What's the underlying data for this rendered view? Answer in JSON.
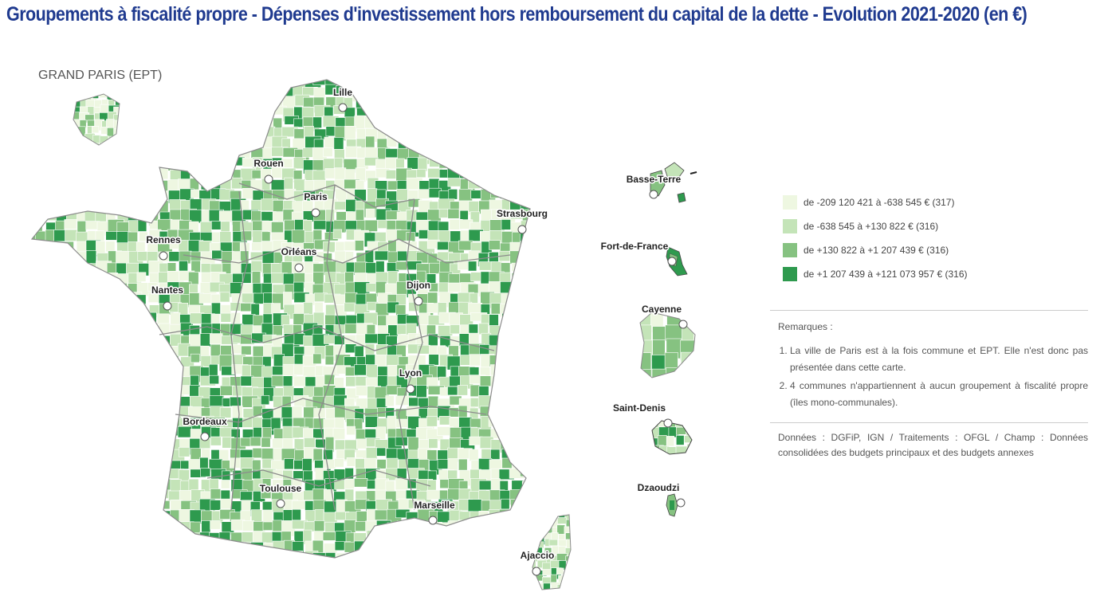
{
  "page": {
    "title": "Groupements à fiscalité propre - Dépenses d'investissement hors remboursement du capital de la dette - Evolution 2021-2020 (en €)",
    "inset_label": "GRAND PARIS (EPT)"
  },
  "colors": {
    "title": "#1f3a8f",
    "class1": "#eef7e1",
    "class2": "#c4e4b8",
    "class3": "#86c281",
    "class4": "#2e9a4e",
    "boundary": "#8c8c8c"
  },
  "legend": {
    "items": [
      {
        "label": "de -209 120 421 à -638 545 € (317)",
        "color": "#eef7e1"
      },
      {
        "label": "de -638 545 à +130 822 € (316)",
        "color": "#c4e4b8"
      },
      {
        "label": "de +130 822 à +1 207 439 € (316)",
        "color": "#86c281"
      },
      {
        "label": "de +1 207 439 à +121 073 957 € (316)",
        "color": "#2e9a4e"
      }
    ]
  },
  "cities": [
    {
      "name": "Lille"
    },
    {
      "name": "Rouen"
    },
    {
      "name": "Paris"
    },
    {
      "name": "Strasbourg"
    },
    {
      "name": "Rennes"
    },
    {
      "name": "Orléans"
    },
    {
      "name": "Nantes"
    },
    {
      "name": "Dijon"
    },
    {
      "name": "Lyon"
    },
    {
      "name": "Bordeaux"
    },
    {
      "name": "Toulouse"
    },
    {
      "name": "Marseille"
    },
    {
      "name": "Ajaccio"
    }
  ],
  "overseas": [
    {
      "name": "Basse-Terre"
    },
    {
      "name": "Fort-de-France"
    },
    {
      "name": "Cayenne"
    },
    {
      "name": "Saint-Denis"
    },
    {
      "name": "Dzaoudzi"
    }
  ],
  "remarks": {
    "heading": "Remarques :",
    "items": [
      "La ville de Paris est à la fois commune et EPT. Elle n'est donc pas présentée dans cette carte.",
      "4 communes n'appartiennent à aucun groupement à fiscalité propre (îles mono-communales)."
    ]
  },
  "source": "Données : DGFiP, IGN / Traitements : OFGL / Champ : Données consolidées des budgets principaux et des budgets annexes"
}
